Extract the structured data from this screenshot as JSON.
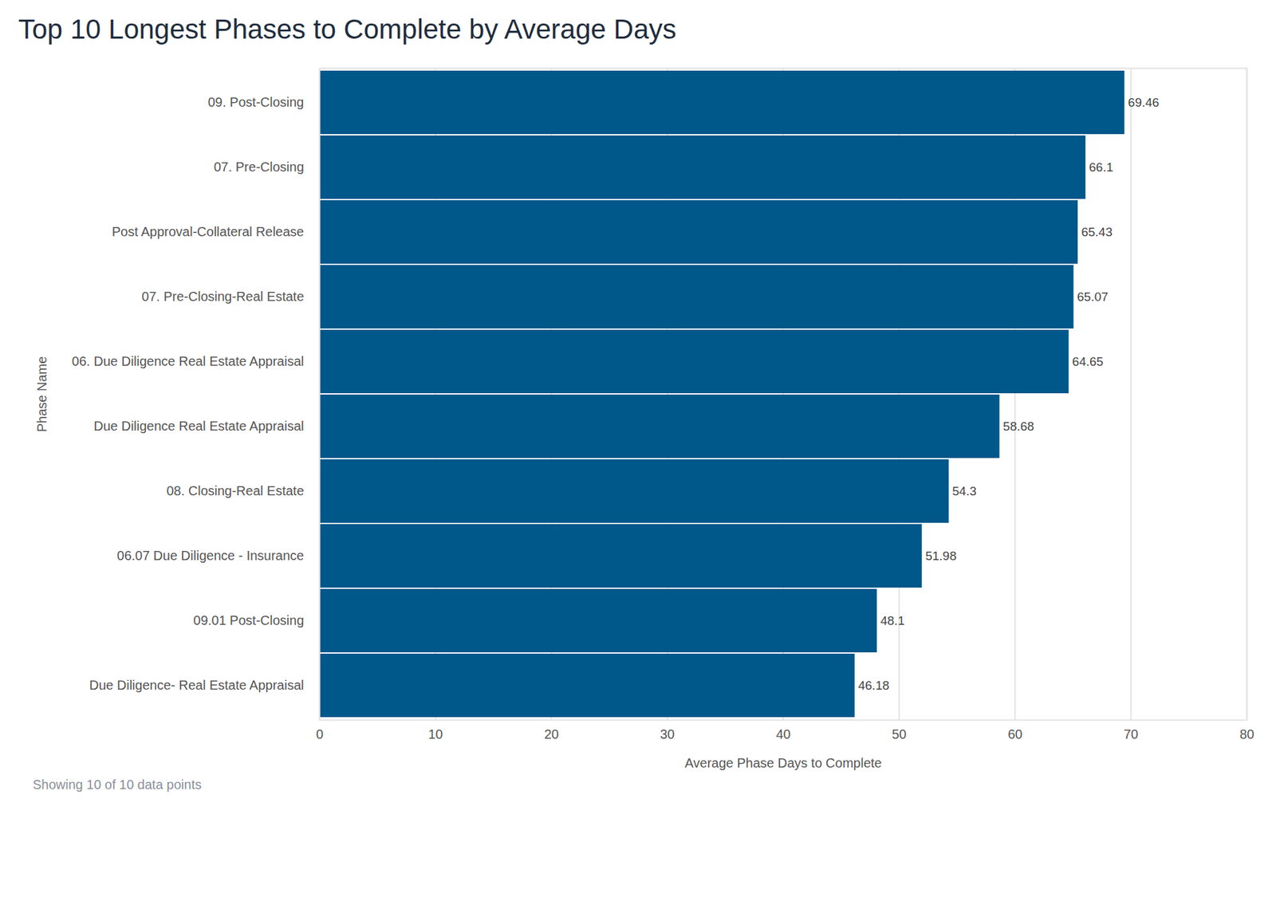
{
  "chart_data": {
    "type": "bar",
    "orientation": "horizontal",
    "title": "Top 10 Longest Phases to Complete by Average Days",
    "x_label": "Average Phase Days to Complete",
    "y_label": "Phase Name",
    "caption": "Showing 10 of 10 data points",
    "categories": [
      "09. Post-Closing",
      "07. Pre-Closing",
      "Post Approval-Collateral Release",
      "07. Pre-Closing-Real Estate",
      "06. Due Diligence Real Estate Appraisal",
      "Due Diligence Real Estate Appraisal",
      "08. Closing-Real Estate",
      "06.07 Due Diligence - Insurance",
      "09.01 Post-Closing",
      "Due Diligence- Real Estate Appraisal"
    ],
    "values": [
      69.46,
      66.1,
      65.43,
      65.07,
      64.65,
      58.68,
      54.3,
      51.98,
      48.1,
      46.18
    ],
    "color": "#00578a",
    "xlim": [
      0,
      80
    ],
    "xticks": [
      0,
      10,
      20,
      30,
      40,
      50,
      60,
      70,
      80
    ],
    "grid": true,
    "data_labels": true
  }
}
